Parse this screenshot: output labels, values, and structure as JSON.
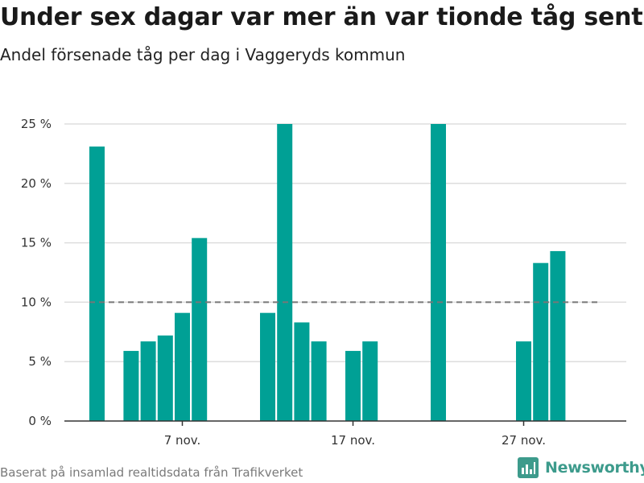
{
  "title": "Under sex dagar var mer än var tionde tåg sent",
  "subtitle": "Andel försenade tåg per dag i Vaggeryds kommun",
  "source": "Baserat på insamlad realtidsdata från Trafikverket",
  "brand": {
    "name": "Newsworthy",
    "color": "#3d9b8c"
  },
  "colors": {
    "bar": "#00a095",
    "reference_line": "#777777",
    "grid": "#dddddd",
    "axis": "#333333"
  },
  "chart_data": {
    "type": "bar",
    "title": "Under sex dagar var mer än var tionde tåg sent",
    "subtitle": "Andel försenade tåg per dag i Vaggeryds kommun",
    "xlabel": "",
    "ylabel": "",
    "x_unit": "day of month (november)",
    "x": [
      2,
      3,
      4,
      5,
      6,
      7,
      8,
      9,
      10,
      11,
      12,
      13,
      14,
      15,
      16,
      17,
      18,
      19,
      20,
      21,
      22,
      23,
      24,
      25,
      26,
      27,
      28,
      29,
      30
    ],
    "values": [
      23.1,
      0,
      5.9,
      6.7,
      7.2,
      9.1,
      15.4,
      0,
      0,
      0,
      9.1,
      25,
      8.3,
      6.7,
      0,
      5.9,
      6.7,
      0,
      0,
      0,
      25,
      0,
      0,
      0,
      0,
      6.7,
      13.3,
      14.3,
      0
    ],
    "ylim": [
      0,
      25
    ],
    "yticks": [
      0,
      5,
      10,
      15,
      20,
      25
    ],
    "ytick_labels": [
      "0 %",
      "5 %",
      "10 %",
      "15 %",
      "20 %",
      "25 %"
    ],
    "xticks": [
      7,
      17,
      27
    ],
    "xtick_labels": [
      "7 nov.",
      "17 nov.",
      "27 nov."
    ],
    "reference_line": {
      "value": 10,
      "style": "dashed"
    },
    "grid": true,
    "legend": "none"
  }
}
